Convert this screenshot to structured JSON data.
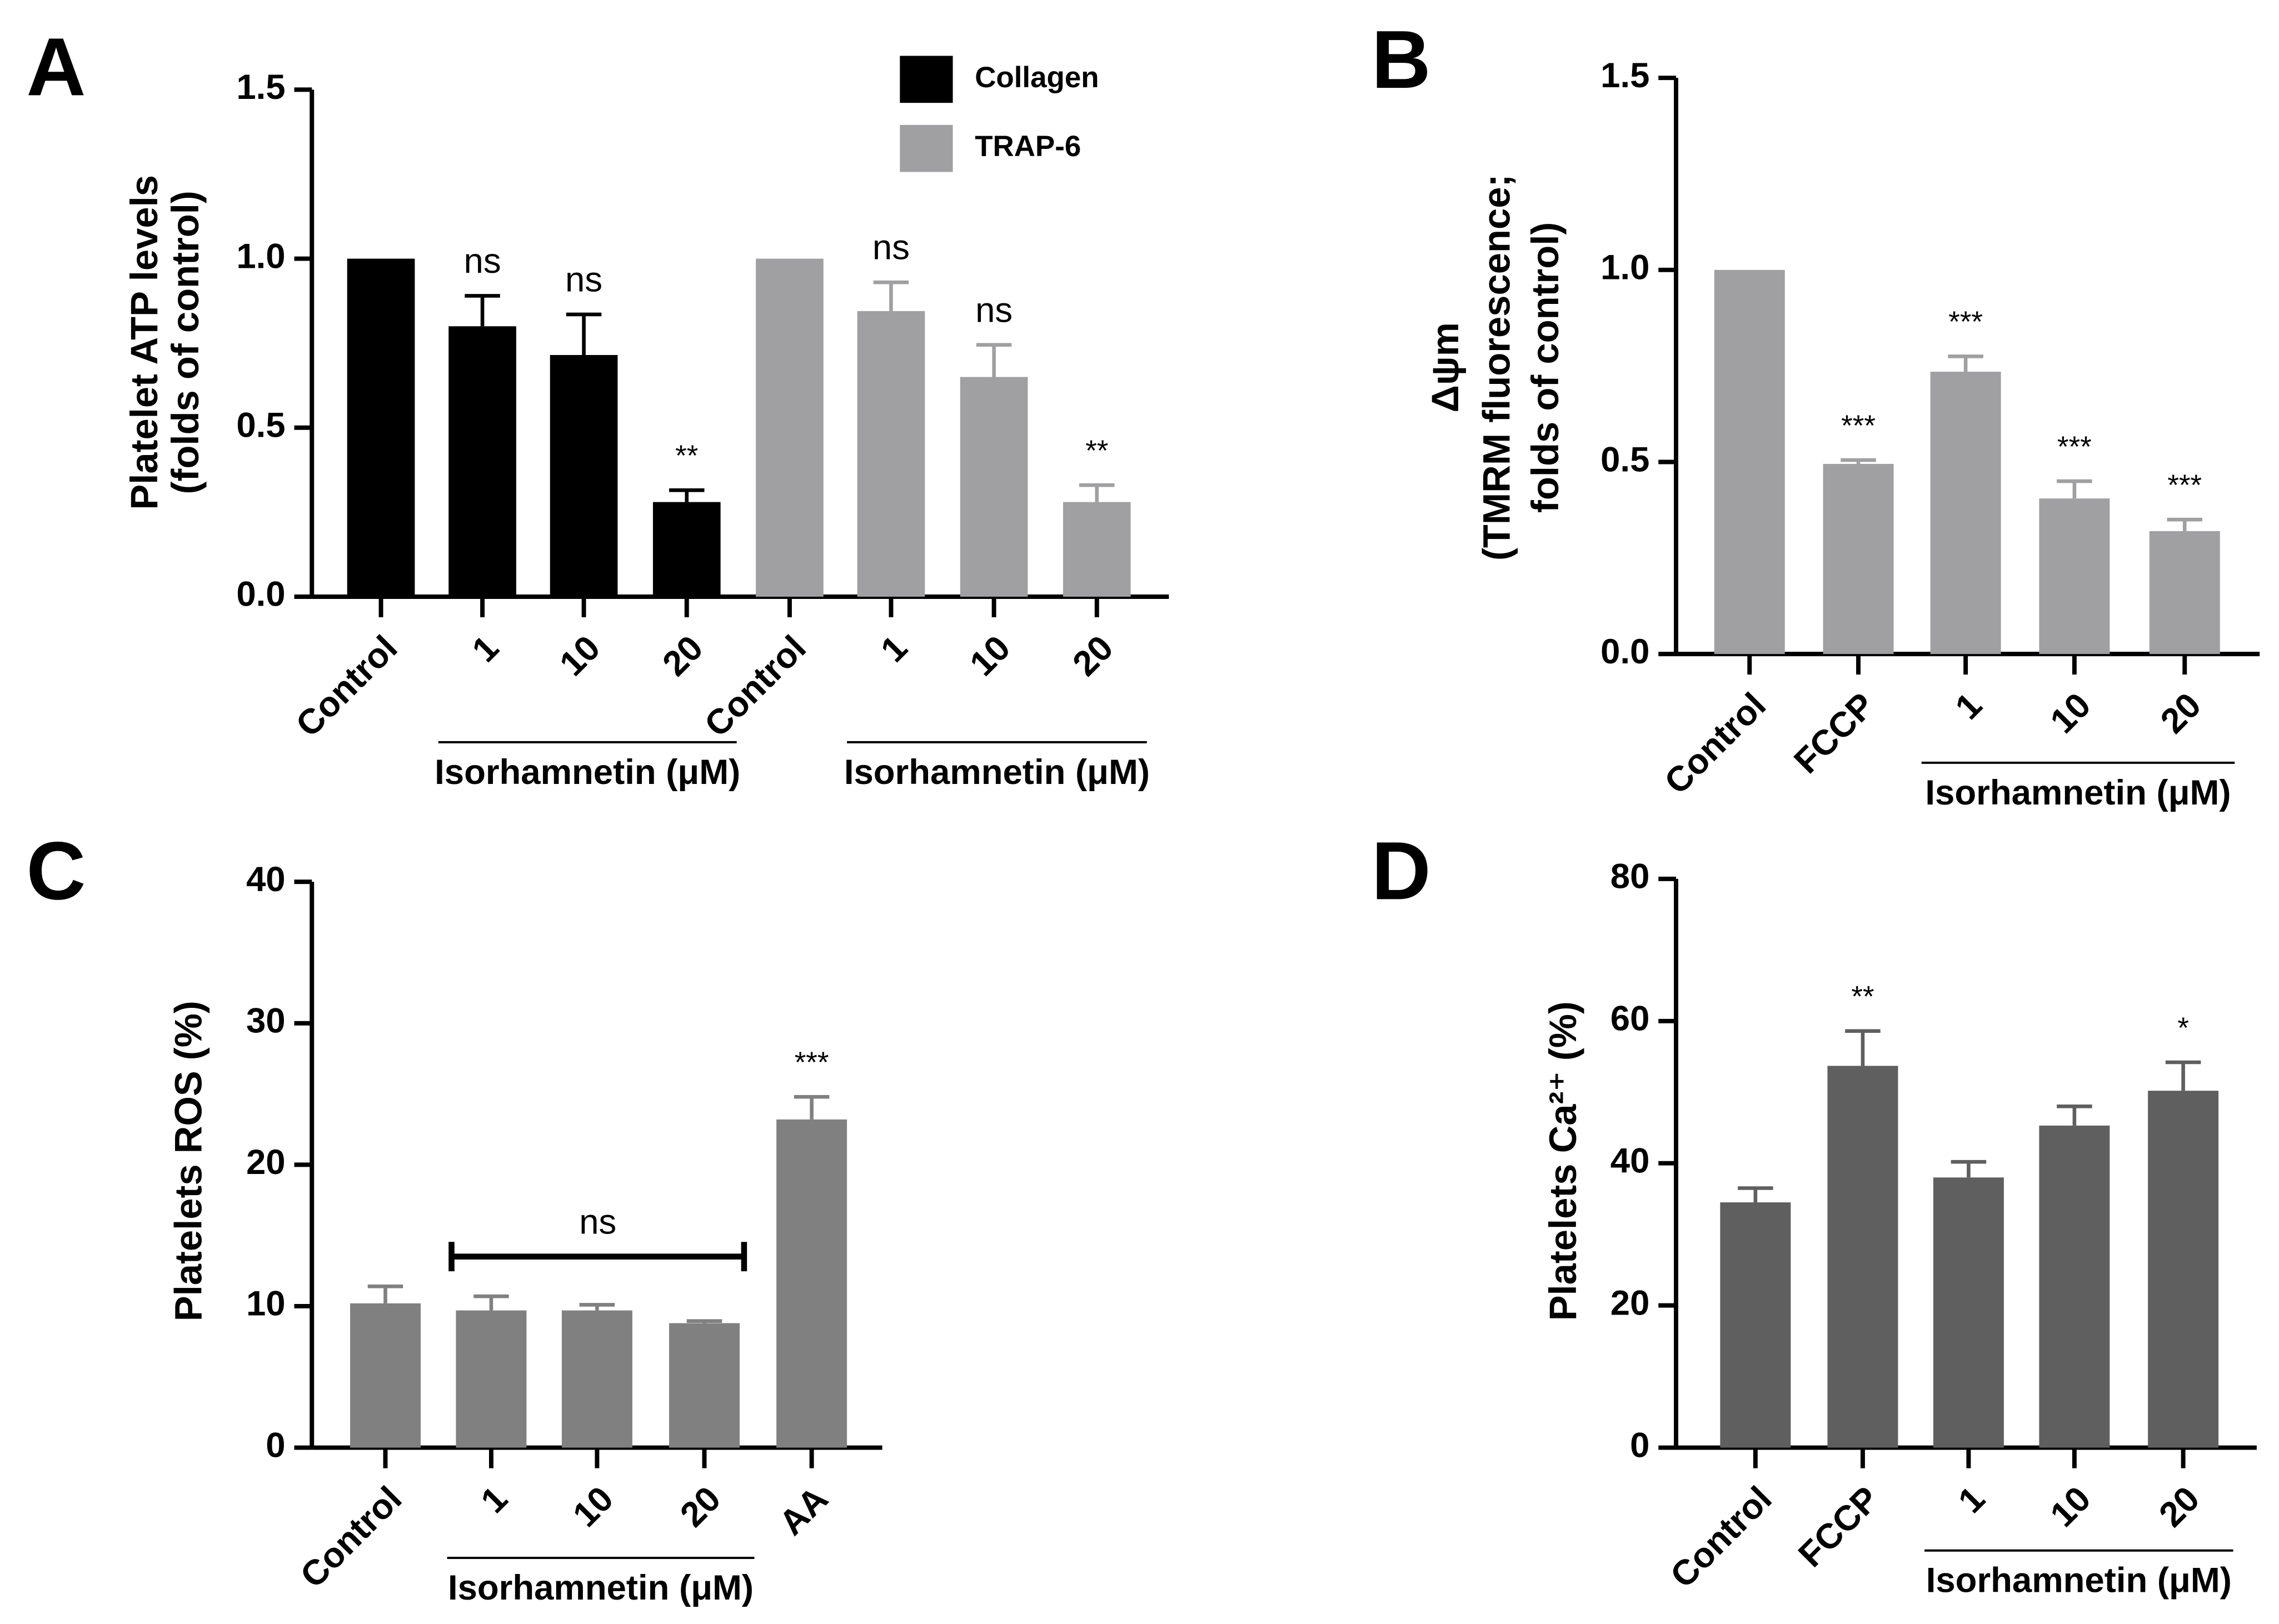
{
  "chart_data": [
    {
      "type": "bar",
      "panel": "A",
      "ylabel": [
        "Platelet ATP levels",
        "(folds of control)"
      ],
      "categories": [
        "Control",
        "1",
        "10",
        "20",
        "Control",
        "1",
        "10",
        "20"
      ],
      "series": [
        {
          "name": "Collagen",
          "color": "#000000",
          "values": [
            1,
            0.8,
            0.715,
            0.28,
            null,
            null,
            null,
            null
          ],
          "errors": [
            null,
            0.09,
            0.12,
            0.035,
            null,
            null,
            null,
            null
          ],
          "labels": [
            null,
            "ns",
            "ns",
            "**",
            null,
            null,
            null,
            null
          ]
        },
        {
          "name": "TRAP-6",
          "color": "#a0a0a2",
          "values": [
            null,
            null,
            null,
            null,
            1,
            0.845,
            0.65,
            0.28
          ],
          "errors": [
            null,
            null,
            null,
            null,
            null,
            0.085,
            0.095,
            0.05
          ],
          "labels": [
            null,
            null,
            null,
            null,
            null,
            "ns",
            "ns",
            "**"
          ]
        }
      ],
      "groups": [
        {
          "label": "Isorhamnetin (μM)",
          "from": 1,
          "to": 3
        },
        {
          "label": "Isorhamnetin (μM)",
          "from": 5,
          "to": 7
        }
      ],
      "ylim": [
        0,
        1.5
      ],
      "yticks": [
        {
          "value": 0,
          "label": "0.0"
        },
        {
          "value": 0.5,
          "label": "0.5"
        },
        {
          "value": 1,
          "label": "1.0"
        },
        {
          "value": 1.5,
          "label": "1.5"
        }
      ],
      "legend": "top-right"
    },
    {
      "type": "bar",
      "panel": "B",
      "ylabel": [
        "Δψm",
        "(TMRM fluorescence;",
        "folds of control)"
      ],
      "categories": [
        "Control",
        "FCCP",
        "1",
        "10",
        "20"
      ],
      "color": "#a0a0a2",
      "values": [
        1,
        0.495,
        0.735,
        0.405,
        0.32
      ],
      "errors": [
        null,
        0.01,
        0.04,
        0.045,
        0.03
      ],
      "labels": [
        null,
        "***",
        "***",
        "***",
        "***"
      ],
      "groups": [
        {
          "label": "Isorhamnetin (μM)",
          "from": 2,
          "to": 4
        }
      ],
      "ylim": [
        0,
        1.5
      ],
      "yticks": [
        {
          "value": 0,
          "label": "0.0"
        },
        {
          "value": 0.5,
          "label": "0.5"
        },
        {
          "value": 1,
          "label": "1.0"
        },
        {
          "value": 1.5,
          "label": "1.5"
        }
      ]
    },
    {
      "type": "bar",
      "panel": "C",
      "ylabel": [
        "Platelets ROS (%)"
      ],
      "categories": [
        "Control",
        "1",
        "10",
        "20",
        "AA"
      ],
      "color": "#808080",
      "values": [
        10.2,
        9.7,
        9.7,
        8.8,
        23.2
      ],
      "errors": [
        1.2,
        1.0,
        0.4,
        0.15,
        1.6
      ],
      "labels": [
        null,
        null,
        null,
        null,
        "***"
      ],
      "bracket": {
        "label": "ns",
        "from": 1,
        "to": 3
      },
      "groups": [
        {
          "label": "Isorhamnetin (μM)",
          "from": 1,
          "to": 3
        }
      ],
      "ylim": [
        0,
        40
      ],
      "yticks": [
        0,
        10,
        20,
        30,
        40
      ]
    },
    {
      "type": "bar",
      "panel": "D",
      "ylabel": [
        "Platelets Ca²⁺ (%)"
      ],
      "categories": [
        "Control",
        "FCCP",
        "1",
        "10",
        "20"
      ],
      "color": "#5f5f5f",
      "values": [
        34.5,
        53.7,
        38,
        45.3,
        50.2
      ],
      "errors": [
        2,
        4.9,
        2.2,
        2.7,
        4
      ],
      "labels": [
        null,
        "**",
        null,
        null,
        "*"
      ],
      "groups": [
        {
          "label": "Isorhamnetin (μM)",
          "from": 2,
          "to": 4
        }
      ],
      "ylim": [
        0,
        80
      ],
      "yticks": [
        0,
        20,
        40,
        60,
        80
      ]
    }
  ]
}
